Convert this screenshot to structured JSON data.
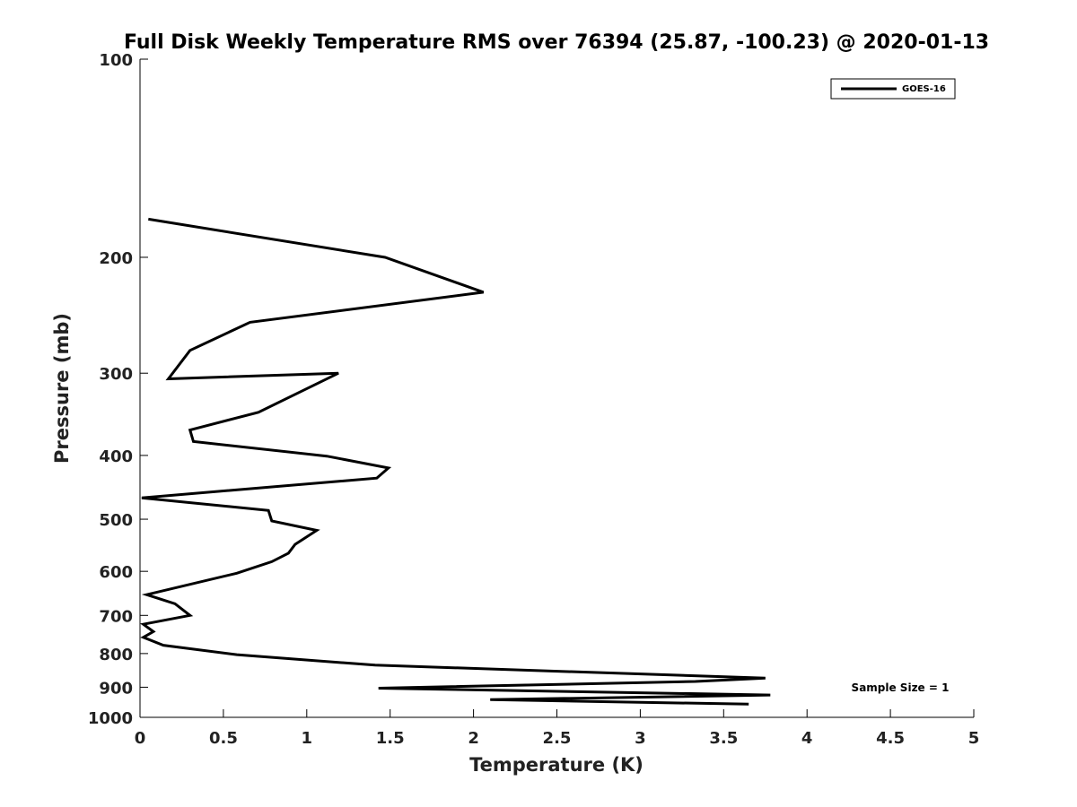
{
  "chart_data": {
    "type": "line",
    "title": "Full Disk Weekly Temperature RMS over 76394 (25.87, -100.23) @ 2020-01-13",
    "xlabel": "Temperature (K)",
    "ylabel": "Pressure (mb)",
    "xlim": [
      0,
      5
    ],
    "ylim": [
      100,
      1000
    ],
    "y_scale": "log",
    "y_reversed": true,
    "grid": false,
    "x_ticks": [
      0,
      0.5,
      1,
      1.5,
      2,
      2.5,
      3,
      3.5,
      4,
      4.5,
      5
    ],
    "x_tick_labels": [
      "0",
      "0.5",
      "1",
      "1.5",
      "2",
      "2.5",
      "3",
      "3.5",
      "4",
      "4.5",
      "5"
    ],
    "y_ticks": [
      100,
      200,
      300,
      400,
      500,
      600,
      700,
      800,
      900,
      1000
    ],
    "y_tick_labels": [
      "100",
      "200",
      "300",
      "400",
      "500",
      "600",
      "700",
      "800",
      "900",
      "1000"
    ],
    "legend_position": "top-right",
    "series": [
      {
        "name": "GOES-16",
        "color": "#000000",
        "points": [
          [
            0.05,
            175
          ],
          [
            1.47,
            200
          ],
          [
            2.06,
            226
          ],
          [
            0.66,
            251
          ],
          [
            0.3,
            277
          ],
          [
            0.17,
            306
          ],
          [
            1.19,
            300
          ],
          [
            0.71,
            344
          ],
          [
            0.3,
            366
          ],
          [
            0.32,
            381
          ],
          [
            1.12,
            401
          ],
          [
            1.49,
            418
          ],
          [
            1.42,
            433
          ],
          [
            0.01,
            464
          ],
          [
            0.77,
            485
          ],
          [
            0.79,
            503
          ],
          [
            1.06,
            520
          ],
          [
            0.93,
            546
          ],
          [
            0.89,
            563
          ],
          [
            0.79,
            580
          ],
          [
            0.58,
            604
          ],
          [
            0.04,
            651
          ],
          [
            0.21,
            672
          ],
          [
            0.3,
            700
          ],
          [
            0.02,
            722
          ],
          [
            0.08,
            741
          ],
          [
            0.02,
            756
          ],
          [
            0.14,
            777
          ],
          [
            0.58,
            803
          ],
          [
            1.41,
            833
          ],
          [
            3.75,
            872
          ],
          [
            3.33,
            882
          ],
          [
            1.43,
            903
          ],
          [
            3.78,
            925
          ],
          [
            2.1,
            940
          ],
          [
            3.65,
            955
          ]
        ]
      }
    ],
    "annotations": [
      "Sample Size = 1"
    ]
  }
}
